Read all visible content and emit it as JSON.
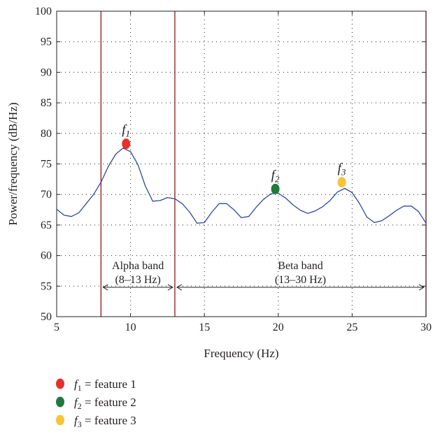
{
  "chart_data": {
    "type": "line",
    "xlabel": "Frequency (Hz)",
    "ylabel": "Power/frequency (dB/Hz)",
    "xlim": [
      5,
      30
    ],
    "ylim": [
      50,
      100
    ],
    "x_ticks": [
      5,
      10,
      15,
      20,
      25,
      30
    ],
    "y_ticks": [
      50,
      55,
      60,
      65,
      70,
      75,
      80,
      85,
      90,
      95,
      100
    ],
    "grid": true,
    "series": [
      {
        "color": "#2e4a9a",
        "points": [
          [
            5.0,
            67.6
          ],
          [
            5.5,
            66.6
          ],
          [
            6.0,
            66.4
          ],
          [
            6.5,
            67.0
          ],
          [
            7.0,
            68.5
          ],
          [
            7.5,
            70.0
          ],
          [
            8.0,
            72.0
          ],
          [
            8.5,
            74.6
          ],
          [
            9.0,
            76.6
          ],
          [
            9.5,
            77.6
          ],
          [
            10.0,
            77.0
          ],
          [
            10.5,
            74.9
          ],
          [
            11.0,
            71.4
          ],
          [
            11.5,
            68.9
          ],
          [
            12.0,
            69.0
          ],
          [
            12.5,
            69.5
          ],
          [
            13.0,
            69.3
          ],
          [
            13.5,
            68.5
          ],
          [
            14.0,
            67.1
          ],
          [
            14.5,
            65.3
          ],
          [
            15.0,
            65.4
          ],
          [
            15.5,
            67.1
          ],
          [
            16.0,
            68.5
          ],
          [
            16.5,
            68.5
          ],
          [
            17.0,
            67.5
          ],
          [
            17.5,
            66.2
          ],
          [
            18.0,
            66.4
          ],
          [
            18.5,
            67.9
          ],
          [
            19.0,
            69.2
          ],
          [
            19.5,
            70.1
          ],
          [
            20.0,
            70.2
          ],
          [
            20.5,
            69.4
          ],
          [
            21.0,
            68.3
          ],
          [
            21.5,
            67.4
          ],
          [
            22.0,
            66.9
          ],
          [
            22.5,
            67.3
          ],
          [
            23.0,
            68.0
          ],
          [
            23.5,
            69.0
          ],
          [
            24.0,
            70.4
          ],
          [
            24.5,
            71.0
          ],
          [
            25.0,
            70.3
          ],
          [
            25.5,
            68.5
          ],
          [
            26.0,
            66.3
          ],
          [
            26.5,
            65.4
          ],
          [
            27.0,
            65.7
          ],
          [
            27.5,
            66.5
          ],
          [
            28.0,
            67.4
          ],
          [
            28.5,
            68.1
          ],
          [
            29.0,
            68.1
          ],
          [
            29.5,
            67.2
          ],
          [
            30.0,
            65.3
          ]
        ]
      }
    ],
    "band_lines": [
      8,
      13,
      30
    ],
    "band_line_color": "#8b1a1a",
    "bands": [
      {
        "label_line1": "Alpha band",
        "label_line2": "(8–13 Hz)",
        "from": 8,
        "to": 13
      },
      {
        "label_line1": "Beta band",
        "label_line2": "(13–30 Hz)",
        "from": 13,
        "to": 30
      }
    ],
    "band_arrow_y": 54.8,
    "features": [
      {
        "sym": "f",
        "sub": "1",
        "x": 9.7,
        "y": 78.3,
        "color": "#e8302b"
      },
      {
        "sym": "f",
        "sub": "2",
        "x": 19.8,
        "y": 70.9,
        "color": "#1f7a3c"
      },
      {
        "sym": "f",
        "sub": "3",
        "x": 24.3,
        "y": 72.0,
        "color": "#f7c437"
      }
    ],
    "legend": [
      {
        "sym": "f",
        "sub": "1",
        "text": "= feature 1",
        "color": "#e8302b"
      },
      {
        "sym": "f",
        "sub": "2",
        "text": "= feature 2",
        "color": "#1f7a3c"
      },
      {
        "sym": "f",
        "sub": "3",
        "text": "= feature 3",
        "color": "#f7c437"
      }
    ]
  }
}
